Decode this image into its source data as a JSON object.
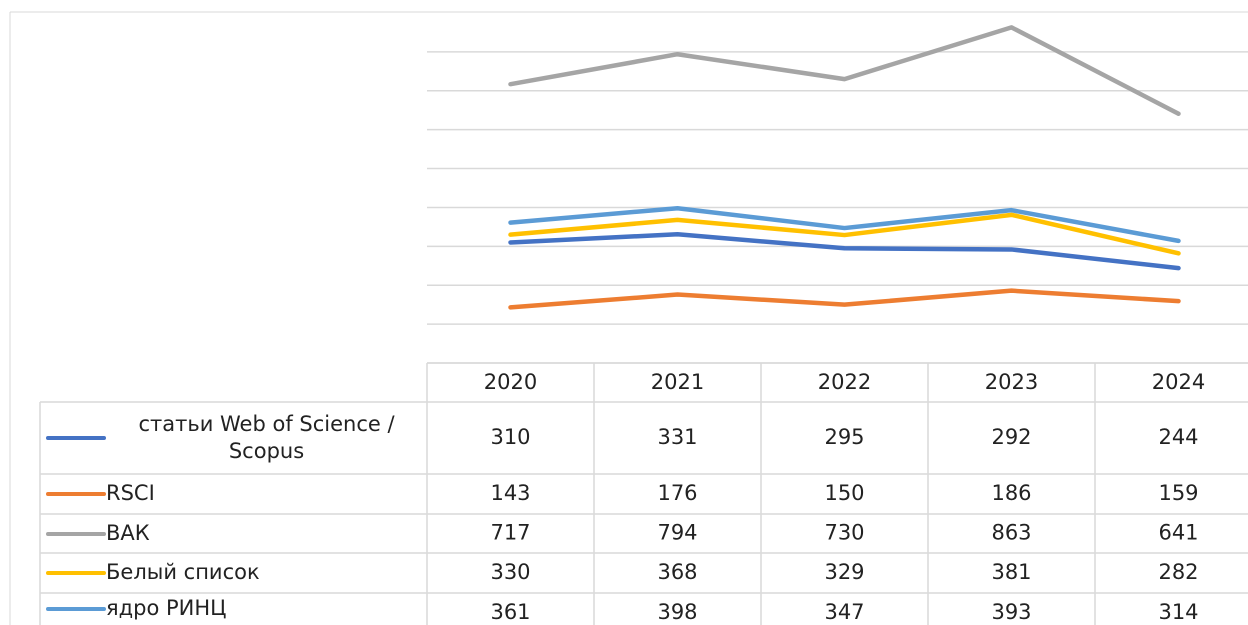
{
  "chart_data": {
    "type": "line",
    "categories": [
      "2020",
      "2021",
      "2022",
      "2023",
      "2024"
    ],
    "series": [
      {
        "name": "статьи Web of Science / Scopus",
        "color": "#4472c4",
        "values": [
          310,
          331,
          295,
          292,
          244
        ]
      },
      {
        "name": "RSCI",
        "color": "#ed7d31",
        "values": [
          143,
          176,
          150,
          186,
          159
        ]
      },
      {
        "name": "ВАК",
        "color": "#a5a5a5",
        "values": [
          717,
          794,
          730,
          863,
          641
        ]
      },
      {
        "name": "Белый список",
        "color": "#ffc000",
        "values": [
          330,
          368,
          329,
          381,
          282
        ]
      },
      {
        "name": "ядро РИНЦ",
        "color": "#5b9bd5",
        "values": [
          361,
          398,
          347,
          393,
          314
        ]
      }
    ],
    "ylim": [
      0,
      900
    ],
    "yticks": [
      0,
      100,
      200,
      300,
      400,
      500,
      600,
      700,
      800
    ],
    "grid": true
  }
}
